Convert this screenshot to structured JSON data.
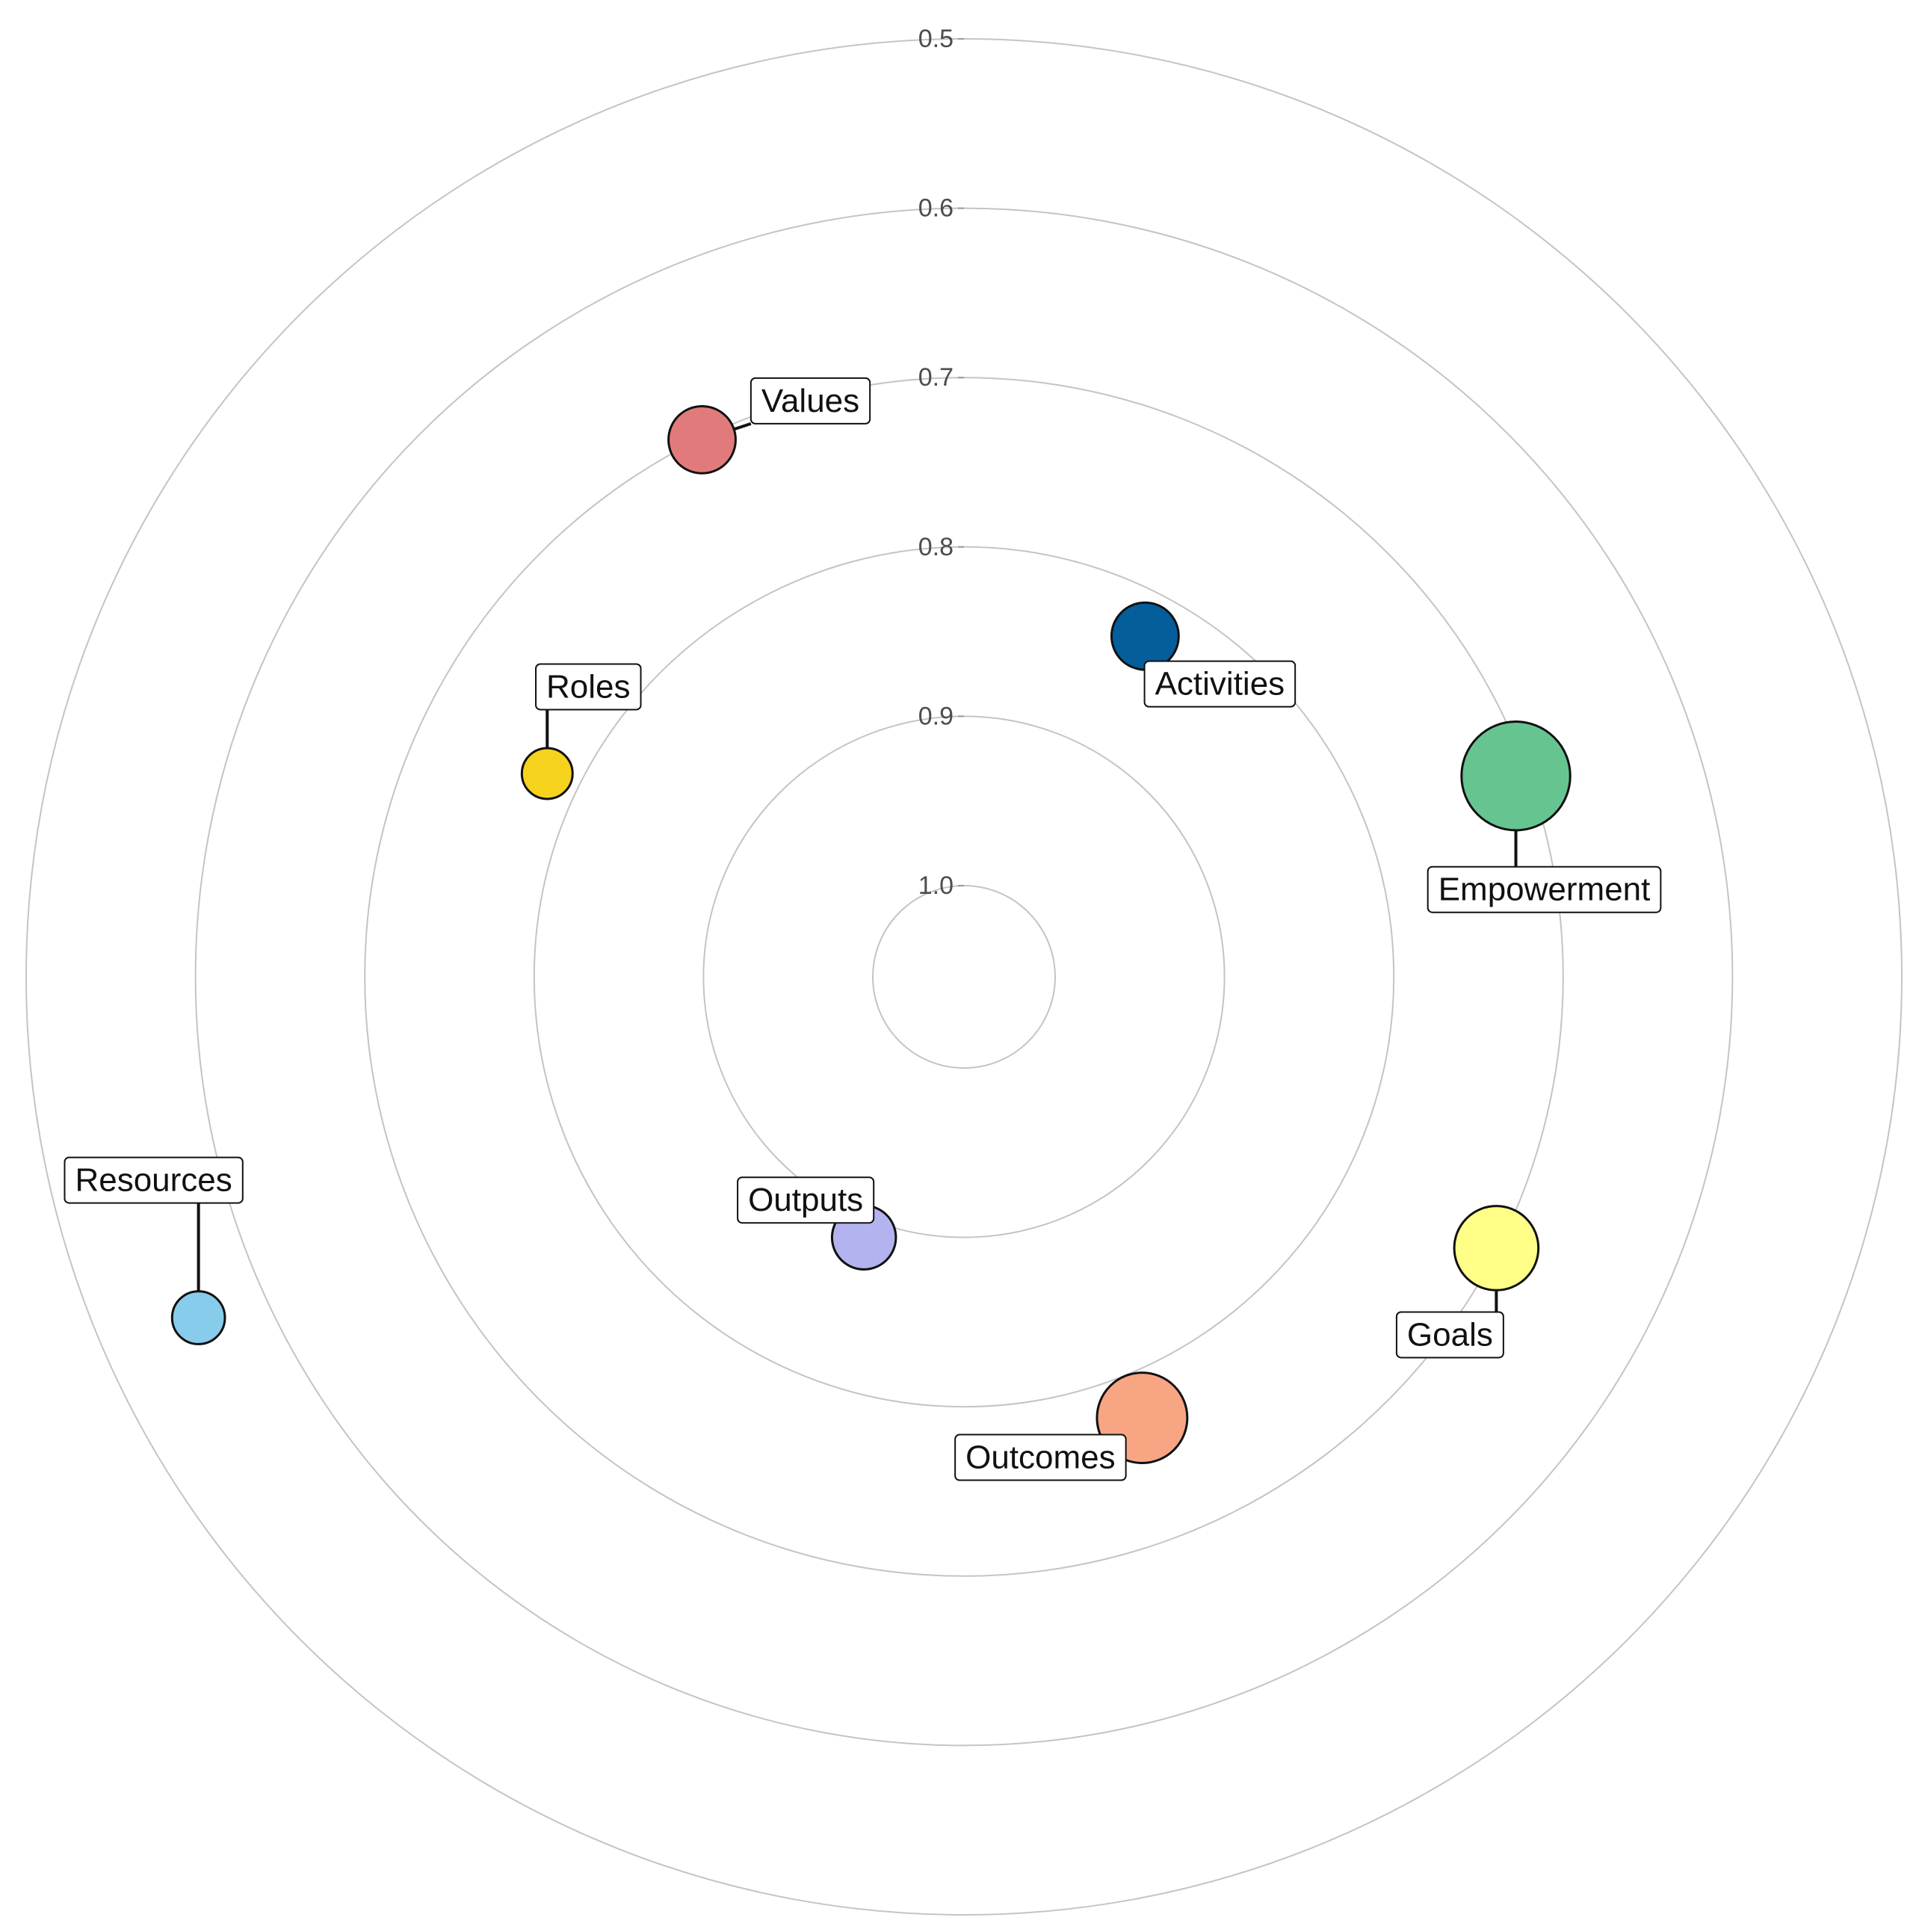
{
  "chart_data": {
    "type": "scatter",
    "coordinate_system": "polar",
    "radial_axis": {
      "direction": "reversed",
      "lim": [
        0.5,
        1.0
      ],
      "ticks": [
        0.5,
        0.6,
        0.7,
        0.8,
        0.9,
        1.0
      ],
      "tick_labels": [
        "0.5",
        "0.6",
        "0.7",
        "0.8",
        "0.9",
        "1.0"
      ]
    },
    "angular_axis": {
      "lim": [
        0,
        360
      ],
      "unit": "degrees",
      "origin": "top",
      "direction": "clockwise",
      "labels_shown": false
    },
    "grid": true,
    "legend": "none",
    "points": [
      {
        "label": "Values",
        "radial": 0.701,
        "angle": 334,
        "size": 2.1,
        "color": "#E17B7B"
      },
      {
        "label": "Activities",
        "radial": 0.826,
        "angle": 28,
        "size": 2.1,
        "color": "#045E9C"
      },
      {
        "label": "Empowerment",
        "radial": 0.707,
        "angle": 70,
        "size": 5.5,
        "color": "#66C490"
      },
      {
        "label": "Roles",
        "radial": 0.78,
        "angle": 296,
        "size": 1.2,
        "color": "#F5D31C"
      },
      {
        "label": "Goals",
        "radial": 0.701,
        "angle": 117,
        "size": 3.3,
        "color": "#FFFF88"
      },
      {
        "label": "Outcomes",
        "radial": 0.773,
        "angle": 158,
        "size": 3.8,
        "color": "#F8A583"
      },
      {
        "label": "Outputs",
        "radial": 0.889,
        "angle": 201,
        "size": 1.9,
        "color": "#B3B3EF"
      },
      {
        "label": "Resources",
        "radial": 0.559,
        "angle": 246,
        "size": 1.3,
        "color": "#87CCEB"
      }
    ]
  }
}
